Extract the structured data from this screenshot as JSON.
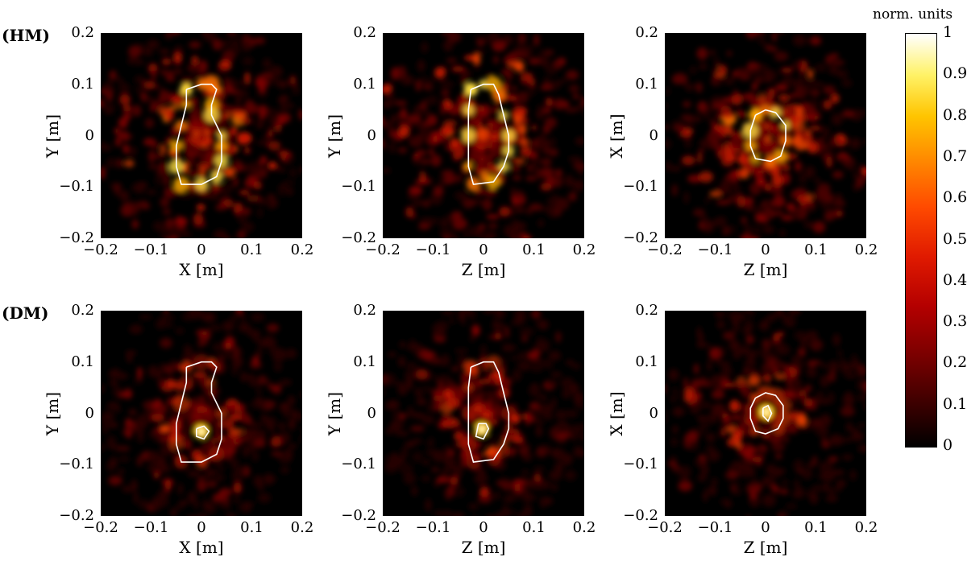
{
  "chart_data": {
    "type": "heatmap",
    "rows": [
      {
        "label": "(HM)",
        "panels": [
          {
            "xlabel": "X [m]",
            "ylabel": "Y [m]",
            "xlim": [
              -0.2,
              0.2
            ],
            "ylim": [
              -0.2,
              0.2
            ],
            "outline": [
              [
                -0.03,
                0.09
              ],
              [
                0.0,
                0.1
              ],
              [
                0.02,
                0.1
              ],
              [
                0.03,
                0.09
              ],
              [
                0.02,
                0.06
              ],
              [
                0.02,
                0.04
              ],
              [
                0.04,
                0.0
              ],
              [
                0.04,
                -0.02
              ],
              [
                0.04,
                -0.05
              ],
              [
                0.03,
                -0.08
              ],
              [
                0.0,
                -0.095
              ],
              [
                -0.04,
                -0.095
              ],
              [
                -0.05,
                -0.06
              ],
              [
                -0.05,
                -0.02
              ],
              [
                -0.04,
                0.02
              ],
              [
                -0.03,
                0.06
              ],
              [
                -0.03,
                0.09
              ]
            ]
          },
          {
            "xlabel": "Z [m]",
            "ylabel": "Y [m]",
            "xlim": [
              -0.2,
              0.2
            ],
            "ylim": [
              -0.2,
              0.2
            ],
            "outline": [
              [
                -0.025,
                0.09
              ],
              [
                0.0,
                0.1
              ],
              [
                0.02,
                0.1
              ],
              [
                0.03,
                0.08
              ],
              [
                0.04,
                0.04
              ],
              [
                0.05,
                0.0
              ],
              [
                0.05,
                -0.03
              ],
              [
                0.04,
                -0.06
              ],
              [
                0.02,
                -0.09
              ],
              [
                -0.02,
                -0.095
              ],
              [
                -0.03,
                -0.06
              ],
              [
                -0.03,
                0.0
              ],
              [
                -0.03,
                0.05
              ],
              [
                -0.025,
                0.09
              ]
            ]
          },
          {
            "xlabel": "Z [m]",
            "ylabel": "X [m]",
            "xlim": [
              -0.2,
              0.2
            ],
            "ylim": [
              -0.2,
              0.2
            ],
            "outline": [
              [
                -0.02,
                0.04
              ],
              [
                0.0,
                0.05
              ],
              [
                0.02,
                0.045
              ],
              [
                0.04,
                0.02
              ],
              [
                0.04,
                -0.01
              ],
              [
                0.03,
                -0.04
              ],
              [
                0.01,
                -0.05
              ],
              [
                -0.02,
                -0.045
              ],
              [
                -0.03,
                -0.02
              ],
              [
                -0.03,
                0.01
              ],
              [
                -0.02,
                0.04
              ]
            ]
          }
        ]
      },
      {
        "label": "(DM)",
        "panels": [
          {
            "xlabel": "X [m]",
            "ylabel": "Y [m]",
            "xlim": [
              -0.2,
              0.2
            ],
            "ylim": [
              -0.2,
              0.2
            ],
            "outline": [
              [
                -0.03,
                0.09
              ],
              [
                0.0,
                0.1
              ],
              [
                0.02,
                0.1
              ],
              [
                0.03,
                0.09
              ],
              [
                0.02,
                0.06
              ],
              [
                0.02,
                0.04
              ],
              [
                0.04,
                0.0
              ],
              [
                0.04,
                -0.02
              ],
              [
                0.04,
                -0.05
              ],
              [
                0.03,
                -0.08
              ],
              [
                0.0,
                -0.095
              ],
              [
                -0.04,
                -0.095
              ],
              [
                -0.05,
                -0.06
              ],
              [
                -0.05,
                -0.02
              ],
              [
                -0.04,
                0.02
              ],
              [
                -0.03,
                0.06
              ],
              [
                -0.03,
                0.09
              ]
            ],
            "inner": [
              [
                -0.01,
                -0.03
              ],
              [
                0.005,
                -0.025
              ],
              [
                0.015,
                -0.035
              ],
              [
                0.005,
                -0.05
              ],
              [
                -0.01,
                -0.045
              ],
              [
                -0.01,
                -0.03
              ]
            ]
          },
          {
            "xlabel": "Z [m]",
            "ylabel": "Y [m]",
            "xlim": [
              -0.2,
              0.2
            ],
            "ylim": [
              -0.2,
              0.2
            ],
            "outline": [
              [
                -0.025,
                0.09
              ],
              [
                0.0,
                0.1
              ],
              [
                0.02,
                0.1
              ],
              [
                0.03,
                0.08
              ],
              [
                0.04,
                0.04
              ],
              [
                0.05,
                0.0
              ],
              [
                0.05,
                -0.03
              ],
              [
                0.04,
                -0.06
              ],
              [
                0.02,
                -0.09
              ],
              [
                -0.02,
                -0.095
              ],
              [
                -0.03,
                -0.06
              ],
              [
                -0.03,
                0.0
              ],
              [
                -0.03,
                0.05
              ],
              [
                -0.025,
                0.09
              ]
            ],
            "inner": [
              [
                -0.01,
                -0.02
              ],
              [
                0.005,
                -0.02
              ],
              [
                0.01,
                -0.03
              ],
              [
                0.0,
                -0.05
              ],
              [
                -0.015,
                -0.045
              ],
              [
                -0.01,
                -0.02
              ]
            ]
          },
          {
            "xlabel": "Z [m]",
            "ylabel": "X [m]",
            "xlim": [
              -0.2,
              0.2
            ],
            "ylim": [
              -0.2,
              0.2
            ],
            "outline": [
              [
                -0.02,
                0.03
              ],
              [
                0.0,
                0.04
              ],
              [
                0.02,
                0.035
              ],
              [
                0.035,
                0.015
              ],
              [
                0.035,
                -0.01
              ],
              [
                0.025,
                -0.03
              ],
              [
                0.0,
                -0.04
              ],
              [
                -0.02,
                -0.035
              ],
              [
                -0.03,
                -0.01
              ],
              [
                -0.03,
                0.01
              ],
              [
                -0.02,
                0.03
              ]
            ],
            "inner": [
              [
                -0.005,
                0.01
              ],
              [
                0.005,
                0.015
              ],
              [
                0.012,
                0.0
              ],
              [
                0.005,
                -0.015
              ],
              [
                -0.005,
                -0.005
              ],
              [
                -0.005,
                0.01
              ]
            ]
          }
        ]
      }
    ],
    "x_ticks": [
      "−0.2",
      "−0.1",
      "0",
      "0.1",
      "0.2"
    ],
    "y_ticks": [
      "0.2",
      "0.1",
      "0",
      "−0.1",
      "−0.2"
    ],
    "colorbar": {
      "title": "norm. units",
      "range": [
        0,
        1
      ],
      "ticks": [
        "1",
        "0.9",
        "0.8",
        "0.7",
        "0.6",
        "0.5",
        "0.4",
        "0.3",
        "0.2",
        "0.1",
        "0"
      ]
    },
    "colors": {
      "outline": "#ffffff",
      "background": "#000000"
    }
  }
}
